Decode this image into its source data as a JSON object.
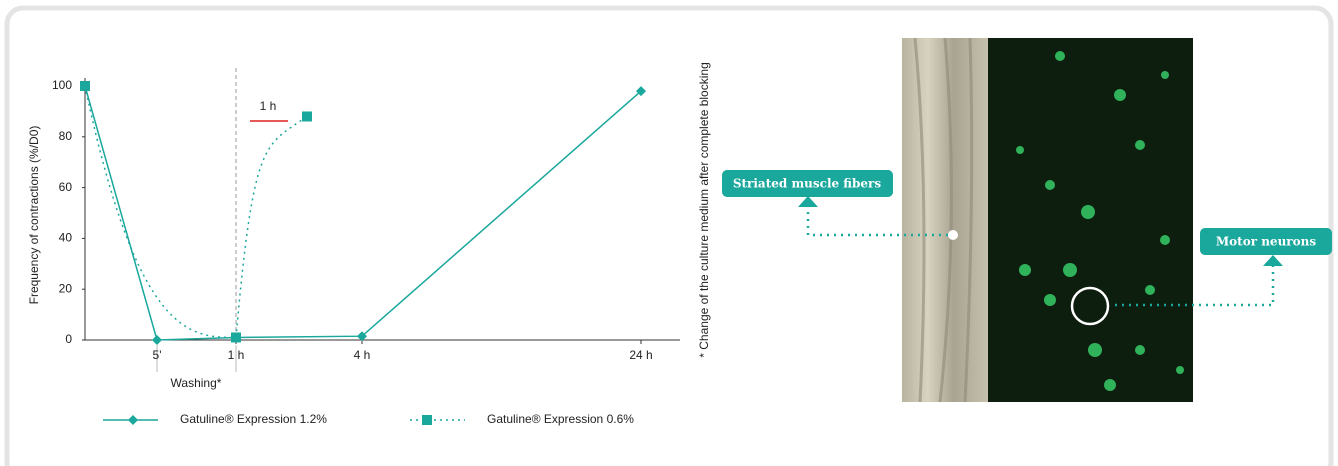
{
  "chart_data": {
    "type": "line",
    "y_label": "Frequency of contractions (%/D0)",
    "categories": [
      null,
      "5'",
      "1 h",
      null,
      "4 h",
      "24 h"
    ],
    "series": [
      {
        "name": "Gatuline® Expression 1.2%",
        "color": "#1aa79c",
        "style": "solid",
        "marker": "diamond",
        "values": [
          100,
          0,
          1,
          null,
          1.5,
          98
        ]
      },
      {
        "name": "Gatuline® Expression 0.6%",
        "color": "#1aa79c",
        "style": "dotted",
        "marker": "square",
        "values": [
          100,
          null,
          1,
          88,
          null,
          null
        ]
      }
    ],
    "ylim": [
      0,
      100
    ],
    "yticks": [
      0,
      20,
      40,
      60,
      80,
      100
    ],
    "annotations": {
      "scale": "1 h",
      "washing": "Washing*",
      "footnote": "* Change of the culture medium after complete blocking"
    },
    "image_labels": {
      "muscle": "Striated muscle fibers",
      "neurons": "Motor neurons"
    }
  }
}
